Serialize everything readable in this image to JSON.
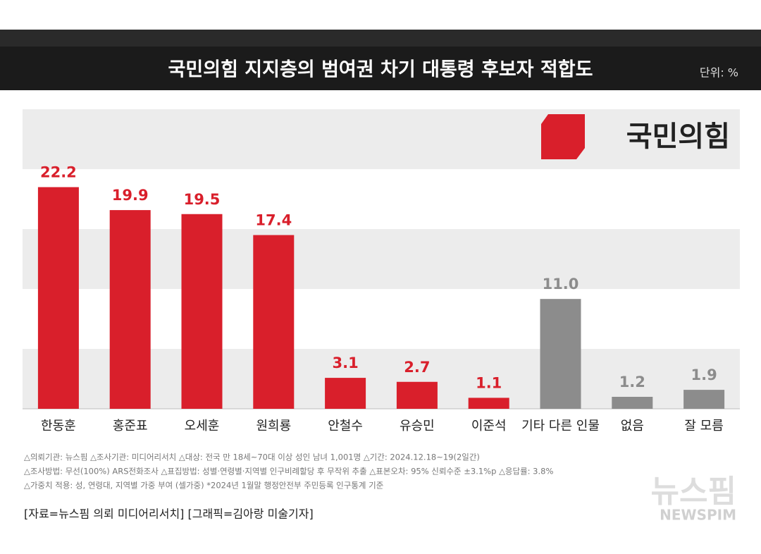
{
  "chart_data": {
    "type": "bar",
    "title": "국민의힘 지지층의 범여권 차기 대통령 후보자 적합도",
    "unit": "단위: %",
    "brand": "국민의힘",
    "categories": [
      "한동훈",
      "홍준표",
      "오세훈",
      "원희룡",
      "안철수",
      "유승민",
      "이준석",
      "기타 다른 인물",
      "없음",
      "잘 모름"
    ],
    "values": [
      22.2,
      19.9,
      19.5,
      17.4,
      3.1,
      2.7,
      1.1,
      11.0,
      1.2,
      1.9
    ],
    "value_labels": [
      "22.2",
      "19.9",
      "19.5",
      "17.4",
      "3.1",
      "2.7",
      "1.1",
      "11.0",
      "1.2",
      "1.9"
    ],
    "colors": [
      "#d91f2b",
      "#d91f2b",
      "#d91f2b",
      "#d91f2b",
      "#d91f2b",
      "#d91f2b",
      "#d91f2b",
      "#8c8c8c",
      "#8c8c8c",
      "#8c8c8c"
    ],
    "ylim": [
      0,
      30
    ],
    "notes": [
      "△의뢰기관: 뉴스핌  △조사기관: 미디어리서치  △대상: 전국 만 18세~70대 이상 성인 남녀 1,001명  △기간: 2024.12.18~19(2일간)",
      "△조사방법: 무선(100%) ARS전화조사  △표집방법: 성별·연령별·지역별 인구비례할당 후 무작위 추출  △표본오차: 95% 신뢰수준 ±3.1%p  △응답률: 3.8%",
      "△가중치 적용: 성, 연령대, 지역별 가중 부여 (셀가중) *2024년 1월말 행정안전부 주민등록 인구통계 기준"
    ],
    "source": "[자료=뉴스핌 의뢰 미디어리서치] [그래픽=김아랑 미술기자]",
    "watermark": "뉴스핌",
    "watermark_sub": "NEWSPIM"
  }
}
